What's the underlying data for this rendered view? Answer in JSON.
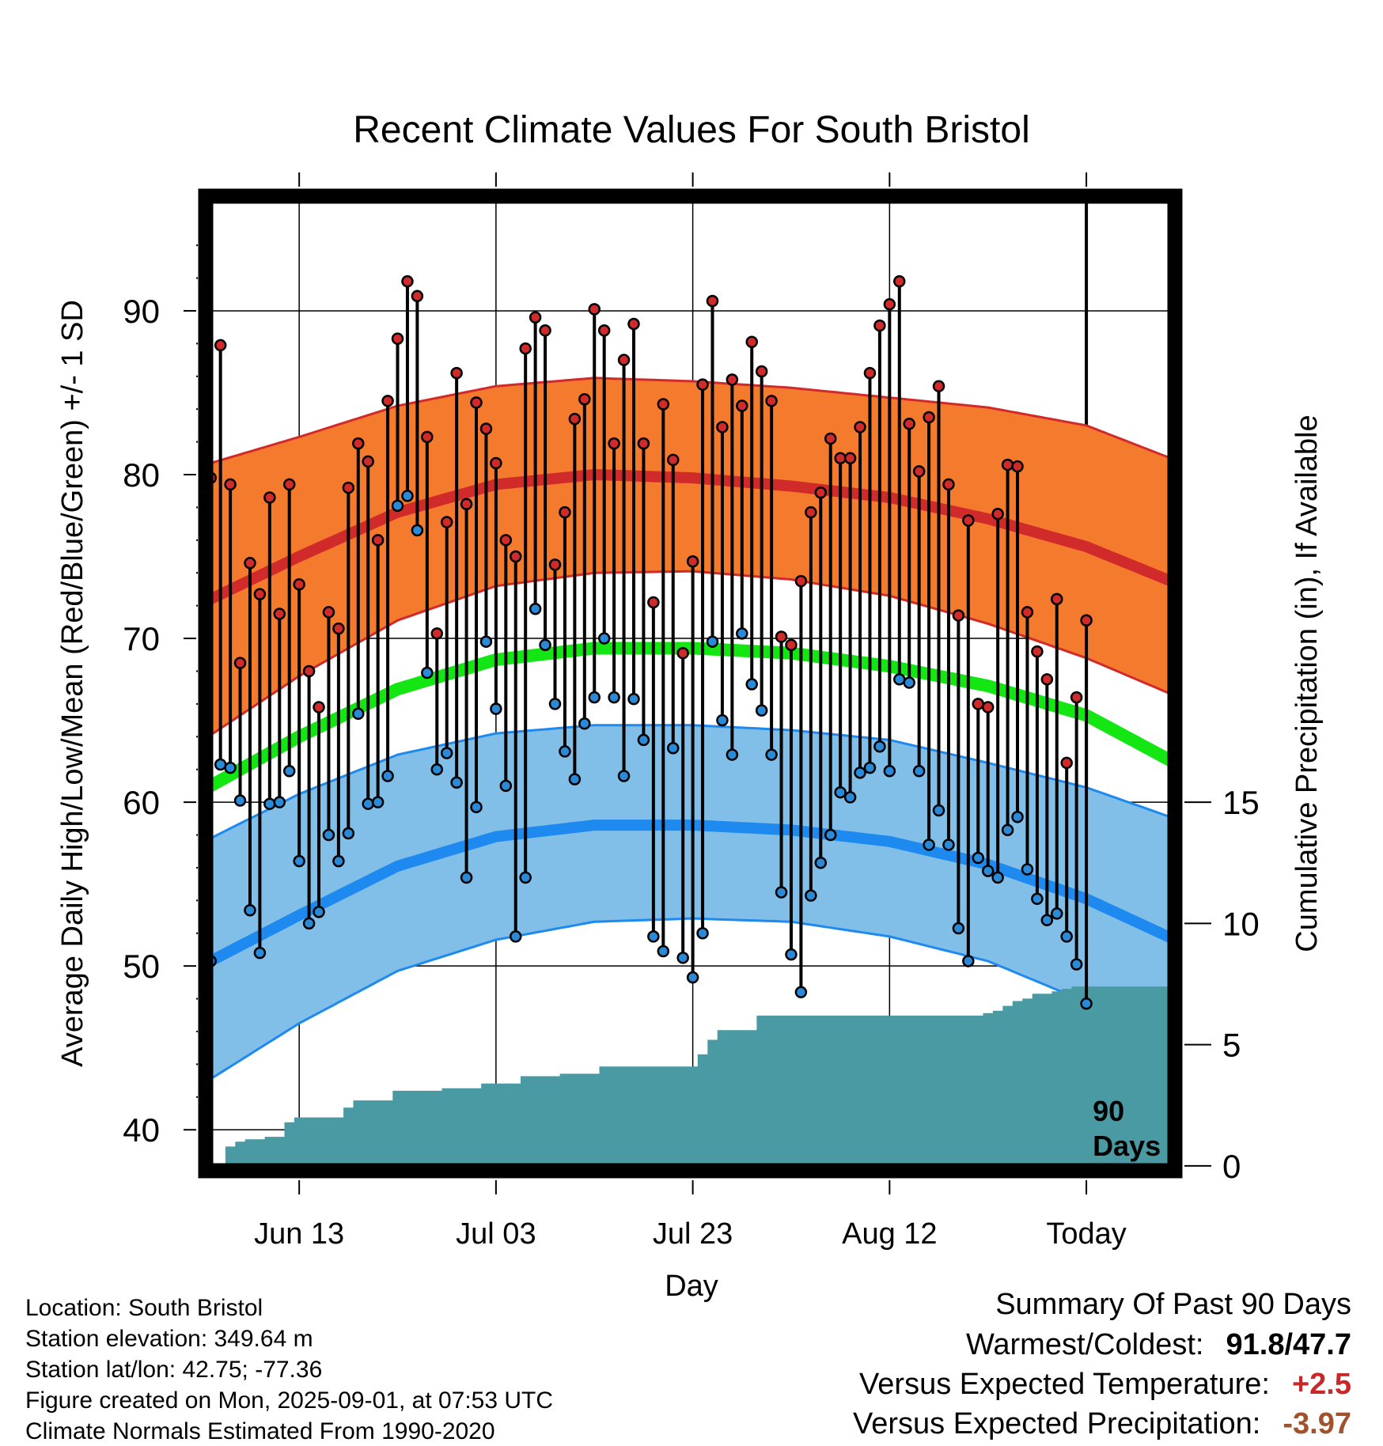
{
  "chart_data": {
    "type": "line",
    "title": "Recent Climate Values For South Bristol",
    "xlabel": "Day",
    "ylabel": "Average Daily High/Low/Mean (Red/Blue/Green) +/- 1 SD",
    "ylabel_right": "Cumulative Precipitation (in), If Available",
    "ylim": [
      37.5,
      97
    ],
    "ylim_right": [
      -0.2,
      40
    ],
    "y_ticks": [
      "40",
      "50",
      "60",
      "70",
      "80",
      "90"
    ],
    "y_right_ticks": [
      "0",
      "5",
      "10",
      "15"
    ],
    "x_range_days": [
      -89.5,
      9
    ],
    "x_ticks": [
      {
        "label": "Jun 13",
        "day": -80
      },
      {
        "label": "Jul 03",
        "day": -60
      },
      {
        "label": "Jul 23",
        "day": -40
      },
      {
        "label": "Aug 12",
        "day": -20
      },
      {
        "label": "Today",
        "day": 0
      }
    ],
    "marker_label": "90\nDays",
    "colors": {
      "high_band": "#f47a2e",
      "high_mean": "#d12a2a",
      "high_edge": "#d12a2a",
      "low_band": "#82bfe8",
      "low_mean": "#1e8aef",
      "low_edge": "#1e8aef",
      "mean": "#14e614",
      "precip": "#4a9aa3",
      "high_dot": "#d02a2a",
      "low_dot": "#2a8ad8"
    },
    "normals": {
      "day": [
        -89,
        -80,
        -70,
        -60,
        -50,
        -40,
        -30,
        -20,
        -10,
        0,
        9
      ],
      "high_mean": [
        72.4,
        75.0,
        77.7,
        79.4,
        80.0,
        79.8,
        79.3,
        78.6,
        77.3,
        75.6,
        73.4
      ],
      "high_upper": [
        80.7,
        82.3,
        84.2,
        85.4,
        85.9,
        85.7,
        85.3,
        84.7,
        84.1,
        83.0,
        80.9
      ],
      "high_lower": [
        64.1,
        67.7,
        71.1,
        73.2,
        74.0,
        74.1,
        73.6,
        72.6,
        70.9,
        68.8,
        66.5
      ],
      "avg_mean": [
        61.0,
        64.0,
        66.9,
        68.7,
        69.4,
        69.4,
        69.1,
        68.3,
        67.1,
        65.3,
        62.4
      ],
      "low_mean": [
        50.3,
        53.1,
        56.1,
        57.9,
        58.6,
        58.6,
        58.3,
        57.6,
        56.2,
        54.1,
        51.6
      ],
      "low_upper": [
        57.8,
        60.5,
        62.9,
        64.2,
        64.7,
        64.7,
        64.4,
        63.8,
        62.4,
        60.9,
        59.0
      ],
      "low_lower": [
        43.1,
        46.5,
        49.7,
        51.6,
        52.7,
        52.9,
        52.7,
        51.8,
        50.3,
        47.8,
        44.2
      ]
    },
    "series": [
      {
        "name": "Daily High",
        "values": [
          79.8,
          87.9,
          79.4,
          68.5,
          74.6,
          72.7,
          78.6,
          71.5,
          79.4,
          73.3,
          68.0,
          65.8,
          71.6,
          70.6,
          79.2,
          81.9,
          80.8,
          76.0,
          84.5,
          88.3,
          91.8,
          90.9,
          82.3,
          70.3,
          77.1,
          86.2,
          78.2,
          84.4,
          82.8,
          80.7,
          76.0,
          75.0,
          87.7,
          89.6,
          88.8,
          74.5,
          77.7,
          83.4,
          84.6,
          90.1,
          88.8,
          81.9,
          87.0,
          89.2,
          81.9,
          72.2,
          84.3,
          80.9,
          69.1,
          74.7,
          85.5,
          90.6,
          82.9,
          85.8,
          84.2,
          88.1,
          86.3,
          84.5,
          70.1,
          69.6,
          73.5,
          77.7,
          78.9,
          82.2,
          81.0,
          81.0,
          82.9,
          86.2,
          89.1,
          90.4,
          91.8,
          83.1,
          80.2,
          83.5,
          85.4,
          79.4,
          71.4,
          77.2,
          66.0,
          65.8,
          77.6,
          80.6,
          80.5,
          71.6,
          69.2,
          67.5,
          72.4,
          62.4,
          66.4,
          71.1
        ]
      },
      {
        "name": "Daily Low",
        "values": [
          50.3,
          62.3,
          62.1,
          60.1,
          53.4,
          50.8,
          59.9,
          60.0,
          61.9,
          56.4,
          52.6,
          53.3,
          58.0,
          56.4,
          58.1,
          65.4,
          59.9,
          60.0,
          61.6,
          78.1,
          78.7,
          76.6,
          67.9,
          62.0,
          63.0,
          61.2,
          55.4,
          59.7,
          69.8,
          65.7,
          61.0,
          51.8,
          55.4,
          71.8,
          69.6,
          66.0,
          63.1,
          61.4,
          64.8,
          66.4,
          70.0,
          66.4,
          61.6,
          66.3,
          63.8,
          51.8,
          50.9,
          63.3,
          50.5,
          49.3,
          52.0,
          69.8,
          65.0,
          62.9,
          70.3,
          67.2,
          65.6,
          62.9,
          54.5,
          50.7,
          48.4,
          54.3,
          56.3,
          58.0,
          60.6,
          60.3,
          61.8,
          62.1,
          63.4,
          61.9,
          67.5,
          67.3,
          61.9,
          57.4,
          59.5,
          57.4,
          52.3,
          50.3,
          56.6,
          55.8,
          55.4,
          58.3,
          59.1,
          55.9,
          54.1,
          52.8,
          53.2,
          51.8,
          50.1,
          47.7
        ]
      },
      {
        "name": "Cumulative Precipitation",
        "day": [
          -89,
          -88,
          -87,
          -86,
          -85,
          -84,
          -83,
          -81,
          -80,
          -79,
          -78,
          -75,
          -74,
          -72,
          -70,
          -67,
          -65,
          -64,
          -62,
          -61,
          -59,
          -57,
          -53,
          -49,
          -40,
          -39,
          -38,
          -37,
          -36,
          -35,
          -34,
          -33,
          -31,
          -30,
          -25,
          -22,
          -20,
          -10,
          -9,
          -8,
          -7,
          -6,
          -5,
          -4,
          -3,
          -2,
          -1,
          0,
          9
        ],
        "values": [
          0.0,
          0.0,
          0.8,
          1.0,
          1.1,
          1.1,
          1.2,
          1.8,
          2.0,
          2.0,
          2.0,
          2.4,
          2.7,
          2.7,
          3.1,
          3.1,
          3.2,
          3.2,
          3.2,
          3.4,
          3.4,
          3.7,
          3.8,
          4.1,
          4.1,
          4.6,
          5.2,
          5.6,
          5.6,
          5.6,
          5.6,
          6.2,
          6.2,
          6.2,
          6.2,
          6.2,
          6.2,
          6.3,
          6.4,
          6.6,
          6.8,
          6.9,
          7.1,
          7.1,
          7.2,
          7.3,
          7.4,
          7.4,
          7.4
        ]
      }
    ]
  },
  "info": {
    "location": "Location: South Bristol",
    "elevation": "Station elevation: 349.64 m",
    "latlon": "Station lat/lon: 42.75; -77.36",
    "created": "Figure created on Mon, 2025-09-01, at 07:53 UTC",
    "normals": "Climate Normals Estimated From 1990-2020"
  },
  "summary": {
    "title": "Summary Of Past 90 Days",
    "warm_cold_label": "Warmest/Coldest:",
    "warmest": "91.8",
    "separator": "/",
    "coldest": "47.7",
    "temp_label": "Versus Expected Temperature:",
    "temp_value": "+2.5",
    "temp_color": "#c8282a",
    "precip_label": "Versus Expected Precipitation:",
    "precip_value": "-3.97",
    "precip_color": "#a0522d"
  }
}
